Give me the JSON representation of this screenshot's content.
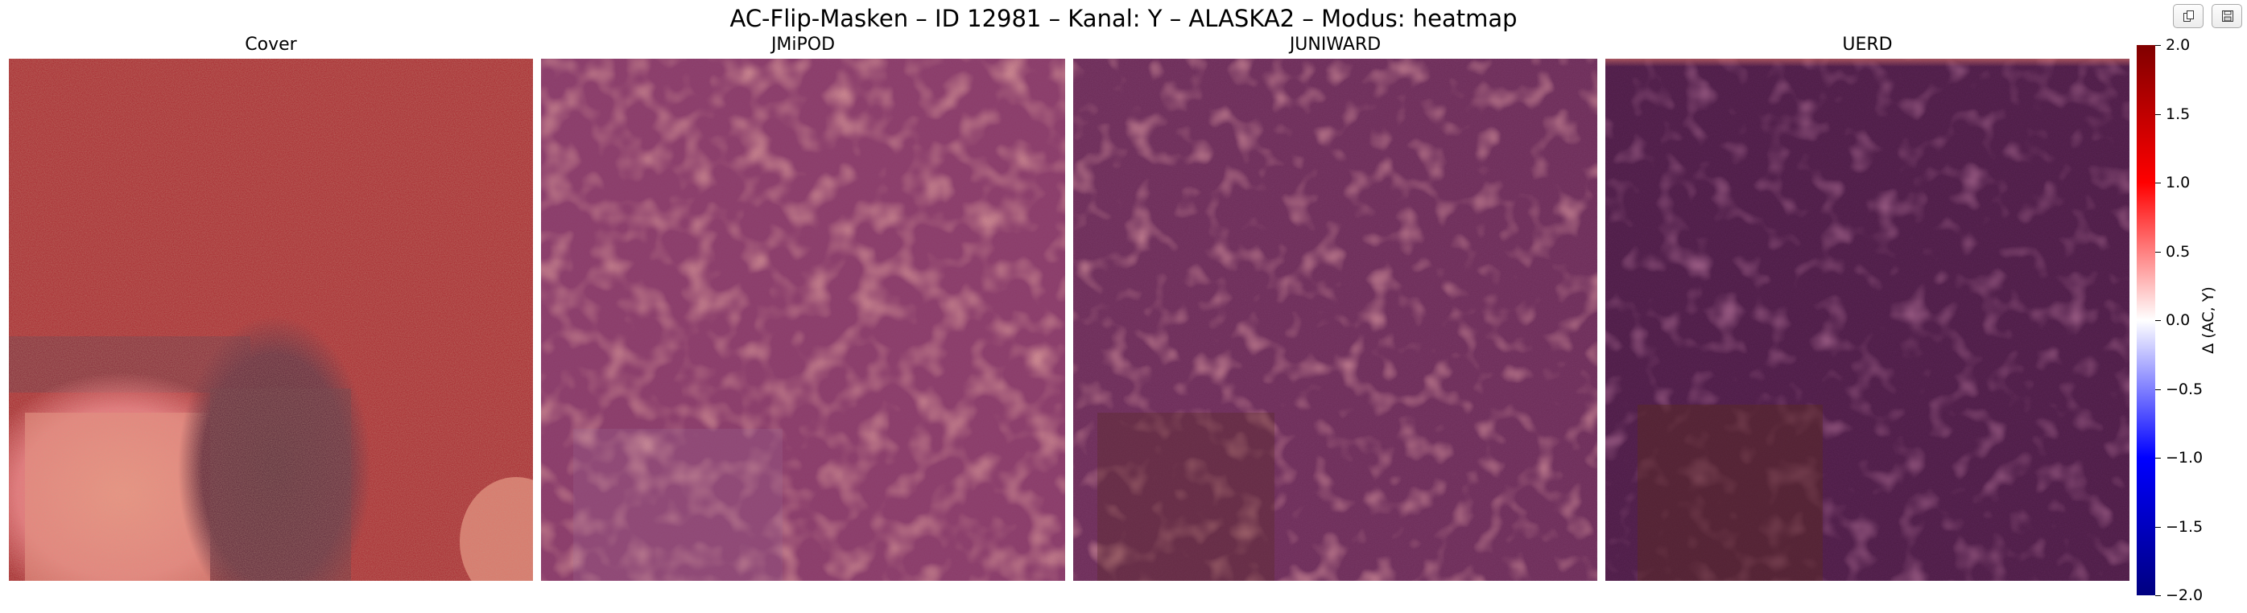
{
  "window": {
    "title": "AC-Flip-Masken – ID 12981 – Kanal: Y – ALASKA2 – Modus: heatmap"
  },
  "toolbar": {
    "buttons": [
      {
        "icon": "copy-icon"
      },
      {
        "icon": "save-icon"
      }
    ]
  },
  "panels": [
    {
      "title": "Cover",
      "base_color": "#a8242c"
    },
    {
      "title": "JMiPOD",
      "base_color": "#8a3a66"
    },
    {
      "title": "JUNIWARD",
      "base_color": "#6a2a55"
    },
    {
      "title": "UERD",
      "base_color": "#4a1a42"
    }
  ],
  "colorbar": {
    "label": "Δ (AC, Y)",
    "colors": [
      "#800000",
      "#ff0000",
      "#ffffff",
      "#0000ff",
      "#000080"
    ],
    "range": [
      -2.0,
      2.0
    ],
    "ticks": [
      {
        "value": 2.0,
        "label": "2.0"
      },
      {
        "value": 1.5,
        "label": "1.5"
      },
      {
        "value": 1.0,
        "label": "1.0"
      },
      {
        "value": 0.5,
        "label": "0.5"
      },
      {
        "value": 0.0,
        "label": "0.0"
      },
      {
        "value": -0.5,
        "label": "−0.5"
      },
      {
        "value": -1.0,
        "label": "−1.0"
      },
      {
        "value": -1.5,
        "label": "−1.5"
      },
      {
        "value": -2.0,
        "label": "−2.0"
      }
    ]
  }
}
